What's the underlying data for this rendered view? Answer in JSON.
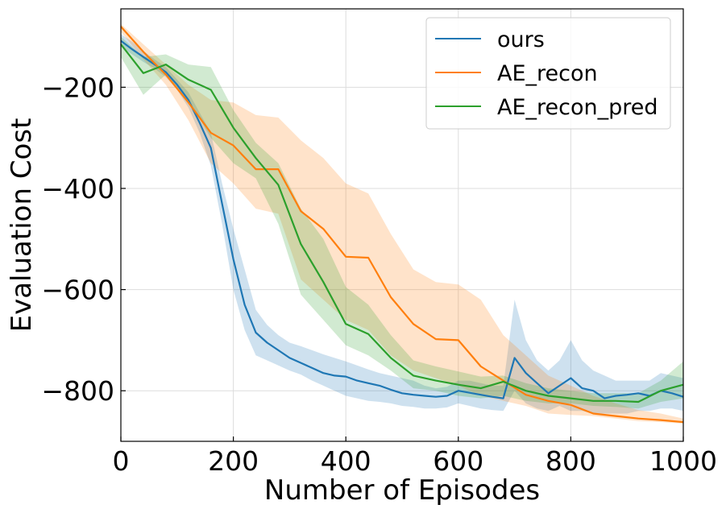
{
  "chart_data": {
    "type": "line",
    "title": "",
    "xlabel": "Number of Episodes",
    "ylabel": "Evaluation Cost",
    "xlim": [
      0,
      1000
    ],
    "ylim": [
      -900,
      -45
    ],
    "xticks": [
      0,
      200,
      400,
      600,
      800,
      1000
    ],
    "xtick_labels": [
      "0",
      "200",
      "400",
      "600",
      "800",
      "1000"
    ],
    "yticks": [
      -800,
      -600,
      -400,
      -200
    ],
    "ytick_labels": [
      "−800",
      "−600",
      "−400",
      "−200"
    ],
    "grid": true,
    "legend": {
      "position": "top-right"
    },
    "series": [
      {
        "name": "ours",
        "color": "#1f77b4",
        "x": [
          0,
          20,
          40,
          60,
          80,
          100,
          120,
          140,
          160,
          180,
          200,
          220,
          240,
          260,
          280,
          300,
          320,
          340,
          360,
          380,
          400,
          420,
          440,
          460,
          480,
          500,
          520,
          540,
          560,
          580,
          600,
          620,
          640,
          660,
          680,
          700,
          720,
          740,
          760,
          780,
          800,
          820,
          840,
          860,
          880,
          900,
          920,
          940,
          960,
          980,
          1000
        ],
        "y": [
          -108,
          -125,
          -140,
          -155,
          -170,
          -195,
          -225,
          -270,
          -320,
          -430,
          -540,
          -630,
          -685,
          -705,
          -720,
          -735,
          -745,
          -755,
          -765,
          -770,
          -772,
          -780,
          -785,
          -790,
          -798,
          -805,
          -808,
          -810,
          -812,
          -810,
          -800,
          -804,
          -808,
          -812,
          -815,
          -735,
          -765,
          -785,
          -805,
          -790,
          -775,
          -795,
          -800,
          -815,
          -810,
          -808,
          -805,
          -810,
          -800,
          -805,
          -812
        ],
        "upper": [
          -95,
          -110,
          -128,
          -145,
          -160,
          -185,
          -210,
          -250,
          -290,
          -390,
          -480,
          -560,
          -640,
          -670,
          -690,
          -705,
          -712,
          -720,
          -728,
          -735,
          -742,
          -750,
          -758,
          -765,
          -770,
          -775,
          -780,
          -790,
          -795,
          -792,
          -780,
          -780,
          -785,
          -790,
          -790,
          -620,
          -700,
          -740,
          -760,
          -740,
          -700,
          -740,
          -760,
          -770,
          -780,
          -780,
          -780,
          -780,
          -765,
          -770,
          -775
        ],
        "lower": [
          -120,
          -135,
          -150,
          -163,
          -180,
          -205,
          -240,
          -290,
          -355,
          -470,
          -600,
          -680,
          -730,
          -740,
          -750,
          -760,
          -768,
          -780,
          -790,
          -800,
          -810,
          -815,
          -820,
          -822,
          -825,
          -830,
          -832,
          -835,
          -835,
          -833,
          -825,
          -830,
          -835,
          -838,
          -840,
          -800,
          -825,
          -835,
          -840,
          -830,
          -840,
          -840,
          -845,
          -845,
          -845,
          -845,
          -840,
          -840,
          -835,
          -835,
          -840
        ]
      },
      {
        "name": "AE_recon",
        "color": "#ff7f0e",
        "x": [
          0,
          40,
          80,
          120,
          160,
          200,
          240,
          280,
          320,
          360,
          400,
          440,
          480,
          520,
          560,
          600,
          640,
          680,
          720,
          760,
          800,
          840,
          880,
          920,
          960,
          1000
        ],
        "y": [
          -80,
          -130,
          -175,
          -230,
          -290,
          -315,
          -362,
          -362,
          -445,
          -480,
          -535,
          -537,
          -615,
          -668,
          -698,
          -700,
          -752,
          -780,
          -808,
          -820,
          -828,
          -845,
          -850,
          -855,
          -858,
          -862
        ],
        "upper": [
          -75,
          -115,
          -155,
          -195,
          -225,
          -230,
          -255,
          -260,
          -305,
          -340,
          -390,
          -410,
          -490,
          -560,
          -585,
          -590,
          -620,
          -690,
          -730,
          -770,
          -790,
          -810,
          -825,
          -838,
          -845,
          -855
        ],
        "lower": [
          -90,
          -145,
          -195,
          -265,
          -350,
          -390,
          -440,
          -450,
          -580,
          -620,
          -660,
          -680,
          -730,
          -760,
          -775,
          -790,
          -810,
          -820,
          -830,
          -845,
          -848,
          -850,
          -855,
          -860,
          -862,
          -865
        ]
      },
      {
        "name": "AE_recon_pred",
        "color": "#2ca02c",
        "x": [
          0,
          40,
          80,
          120,
          160,
          200,
          240,
          280,
          320,
          360,
          400,
          440,
          480,
          520,
          560,
          600,
          640,
          680,
          720,
          760,
          800,
          840,
          880,
          920,
          960,
          1000
        ],
        "y": [
          -115,
          -172,
          -155,
          -185,
          -205,
          -280,
          -340,
          -393,
          -510,
          -585,
          -668,
          -688,
          -735,
          -770,
          -780,
          -788,
          -795,
          -782,
          -800,
          -810,
          -815,
          -820,
          -820,
          -822,
          -800,
          -788
        ],
        "upper": [
          -100,
          -140,
          -135,
          -155,
          -160,
          -245,
          -310,
          -350,
          -440,
          -500,
          -595,
          -630,
          -690,
          -740,
          -752,
          -762,
          -772,
          -770,
          -785,
          -795,
          -800,
          -805,
          -805,
          -805,
          -780,
          -742
        ],
        "lower": [
          -140,
          -215,
          -175,
          -225,
          -300,
          -350,
          -380,
          -470,
          -610,
          -660,
          -710,
          -730,
          -760,
          -795,
          -800,
          -810,
          -815,
          -810,
          -820,
          -825,
          -825,
          -830,
          -832,
          -835,
          -822,
          -815
        ]
      }
    ]
  }
}
